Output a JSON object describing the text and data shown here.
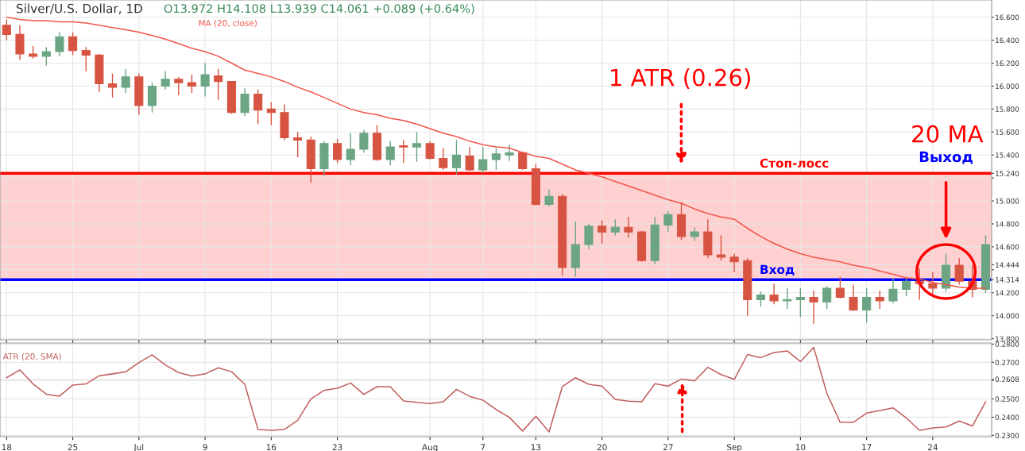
{
  "chart_data": [
    {
      "type": "candlestick",
      "title": "Silver/U.S. Dollar, 1D",
      "subtitle": "O13.972 H14.108 L13.939 C14.061 +0.089 (+0.64%)",
      "categories": [
        null,
        null,
        null,
        null,
        null,
        null,
        null,
        null,
        null,
        null,
        null,
        null,
        null,
        null,
        null,
        null,
        null,
        null,
        null,
        null,
        null,
        null,
        null,
        null,
        null,
        null,
        null,
        null,
        null,
        null,
        null,
        null,
        null,
        null,
        null,
        null,
        null,
        null,
        null,
        null,
        null,
        null,
        null,
        null,
        null,
        null,
        null,
        null,
        null,
        null,
        null,
        null,
        null,
        null,
        null,
        null,
        null,
        null,
        null,
        null,
        null,
        null,
        null,
        null,
        null,
        null,
        null,
        null,
        null,
        null,
        null,
        null,
        null,
        null,
        null
      ],
      "ohlc": [
        [
          16.53,
          16.58,
          16.4,
          16.45
        ],
        [
          16.45,
          16.53,
          16.23,
          16.28
        ],
        [
          16.28,
          16.35,
          16.24,
          16.26
        ],
        [
          16.26,
          16.34,
          16.18,
          16.3
        ],
        [
          16.3,
          16.47,
          16.26,
          16.43
        ],
        [
          16.43,
          16.47,
          16.27,
          16.31
        ],
        [
          16.31,
          16.34,
          16.13,
          16.27
        ],
        [
          16.27,
          16.28,
          15.95,
          16.02
        ],
        [
          16.02,
          16.11,
          15.9,
          15.99
        ],
        [
          15.99,
          16.15,
          15.94,
          16.08
        ],
        [
          16.08,
          16.11,
          15.75,
          15.83
        ],
        [
          15.83,
          16.03,
          15.77,
          16.0
        ],
        [
          16.0,
          16.13,
          15.97,
          16.06
        ],
        [
          16.06,
          16.08,
          15.92,
          16.03
        ],
        [
          16.03,
          16.1,
          15.94,
          16.0
        ],
        [
          16.0,
          16.2,
          15.91,
          16.1
        ],
        [
          16.09,
          16.15,
          15.88,
          16.04
        ],
        [
          16.04,
          16.04,
          15.76,
          15.77
        ],
        [
          15.77,
          15.98,
          15.74,
          15.93
        ],
        [
          15.93,
          15.97,
          15.67,
          15.79
        ],
        [
          15.8,
          15.86,
          15.66,
          15.77
        ],
        [
          15.77,
          15.84,
          15.53,
          15.55
        ],
        [
          15.55,
          15.6,
          15.38,
          15.53
        ],
        [
          15.53,
          15.56,
          15.16,
          15.28
        ],
        [
          15.28,
          15.52,
          15.22,
          15.5
        ],
        [
          15.5,
          15.54,
          15.33,
          15.36
        ],
        [
          15.36,
          15.59,
          15.31,
          15.45
        ],
        [
          15.45,
          15.62,
          15.42,
          15.59
        ],
        [
          15.59,
          15.66,
          15.35,
          15.36
        ],
        [
          15.36,
          15.52,
          15.31,
          15.47
        ],
        [
          15.48,
          15.53,
          15.33,
          15.47
        ],
        [
          15.47,
          15.6,
          15.34,
          15.5
        ],
        [
          15.5,
          15.52,
          15.36,
          15.37
        ],
        [
          15.37,
          15.46,
          15.27,
          15.29
        ],
        [
          15.29,
          15.53,
          15.23,
          15.4
        ],
        [
          15.39,
          15.47,
          15.26,
          15.27
        ],
        [
          15.27,
          15.47,
          15.24,
          15.36
        ],
        [
          15.36,
          15.46,
          15.27,
          15.41
        ],
        [
          15.4,
          15.49,
          15.35,
          15.42
        ],
        [
          15.42,
          15.43,
          15.27,
          15.28
        ],
        [
          15.28,
          15.32,
          14.96,
          14.97
        ],
        [
          14.97,
          15.1,
          14.95,
          15.04
        ],
        [
          15.04,
          15.06,
          14.35,
          14.42
        ],
        [
          14.42,
          14.82,
          14.34,
          14.62
        ],
        [
          14.62,
          14.8,
          14.58,
          14.78
        ],
        [
          14.78,
          14.83,
          14.63,
          14.73
        ],
        [
          14.73,
          14.84,
          14.7,
          14.77
        ],
        [
          14.77,
          14.86,
          14.68,
          14.73
        ],
        [
          14.73,
          14.74,
          14.47,
          14.48
        ],
        [
          14.48,
          14.86,
          14.45,
          14.79
        ],
        [
          14.79,
          14.91,
          14.73,
          14.88
        ],
        [
          14.88,
          14.99,
          14.66,
          14.69
        ],
        [
          14.69,
          14.77,
          14.65,
          14.73
        ],
        [
          14.73,
          14.84,
          14.5,
          14.53
        ],
        [
          14.53,
          14.7,
          14.48,
          14.51
        ],
        [
          14.51,
          14.54,
          14.38,
          14.47
        ],
        [
          14.48,
          14.5,
          14.0,
          14.14
        ],
        [
          14.14,
          14.21,
          14.08,
          14.18
        ],
        [
          14.18,
          14.28,
          14.1,
          14.13
        ],
        [
          14.13,
          14.24,
          14.06,
          14.14
        ],
        [
          14.14,
          14.24,
          13.99,
          14.16
        ],
        [
          14.16,
          14.22,
          13.93,
          14.12
        ],
        [
          14.12,
          14.26,
          14.06,
          14.24
        ],
        [
          14.24,
          14.34,
          14.15,
          14.16
        ],
        [
          14.16,
          14.27,
          14.04,
          14.05
        ],
        [
          14.05,
          14.24,
          13.94,
          14.16
        ],
        [
          14.16,
          14.22,
          14.06,
          14.13
        ],
        [
          14.13,
          14.33,
          14.11,
          14.23
        ],
        [
          14.23,
          14.34,
          14.17,
          14.3
        ],
        [
          14.3,
          14.41,
          14.14,
          14.28
        ],
        [
          14.28,
          14.38,
          14.18,
          14.24
        ],
        [
          14.24,
          14.54,
          14.21,
          14.44
        ],
        [
          14.44,
          14.5,
          14.27,
          14.3
        ],
        [
          14.3,
          14.44,
          14.16,
          14.23
        ],
        [
          14.23,
          14.7,
          14.2,
          14.62
        ]
      ],
      "colors": [
        "#d75442",
        "#d75442",
        "#d75442",
        "#6ba583",
        "#6ba583",
        "#d75442",
        "#d75442",
        "#d75442",
        "#d75442",
        "#6ba583",
        "#d75442",
        "#6ba583",
        "#6ba583",
        "#d75442",
        "#d75442",
        "#6ba583",
        "#d75442",
        "#d75442",
        "#6ba583",
        "#d75442",
        "#d75442",
        "#d75442",
        "#d75442",
        "#d75442",
        "#6ba583",
        "#d75442",
        "#6ba583",
        "#6ba583",
        "#d75442",
        "#6ba583",
        "#d75442",
        "#6ba583",
        "#d75442",
        "#d75442",
        "#6ba583",
        "#d75442",
        "#6ba583",
        "#6ba583",
        "#6ba583",
        "#d75442",
        "#d75442",
        "#6ba583",
        "#d75442",
        "#6ba583",
        "#6ba583",
        "#d75442",
        "#6ba583",
        "#d75442",
        "#d75442",
        "#6ba583",
        "#6ba583",
        "#d75442",
        "#6ba583",
        "#d75442",
        "#d75442",
        "#d75442",
        "#d75442",
        "#6ba583",
        "#d75442",
        "#6ba583",
        "#6ba583",
        "#d75442",
        "#6ba583",
        "#d75442",
        "#d75442",
        "#6ba583",
        "#d75442",
        "#6ba583",
        "#6ba583",
        "#d75442",
        "#d75442",
        "#6ba583",
        "#d75442",
        "#d75442",
        "#6ba583"
      ],
      "series": [
        {
          "type": "line",
          "name": "MA (20, close)",
          "color": "#f2564a",
          "values": [
            16.6,
            16.58,
            16.57,
            16.57,
            16.56,
            16.56,
            16.55,
            16.53,
            16.51,
            16.49,
            16.47,
            16.44,
            16.41,
            16.37,
            16.33,
            16.3,
            16.26,
            16.2,
            16.14,
            16.11,
            16.08,
            16.04,
            15.99,
            15.95,
            15.9,
            15.85,
            15.8,
            15.77,
            15.75,
            15.72,
            15.7,
            15.67,
            15.63,
            15.59,
            15.56,
            15.52,
            15.49,
            15.47,
            15.46,
            15.42,
            15.39,
            15.37,
            15.32,
            15.27,
            15.24,
            15.21,
            15.17,
            15.13,
            15.09,
            15.05,
            15.01,
            14.98,
            14.93,
            14.89,
            14.86,
            14.84,
            14.76,
            14.69,
            14.63,
            14.58,
            14.54,
            14.51,
            14.49,
            14.47,
            14.44,
            14.42,
            14.39,
            14.36,
            14.33,
            14.32,
            14.29,
            14.27,
            14.25,
            14.24,
            14.24
          ]
        }
      ],
      "ylim": [
        13.79,
        16.75
      ],
      "yticks": [
        {
          "value": 13.8,
          "label": "13.800"
        },
        {
          "value": 14.0,
          "label": "14.000"
        },
        {
          "value": 14.2,
          "label": "14.200"
        },
        {
          "value": 14.4,
          "label": null
        },
        {
          "value": 14.6,
          "label": "14.600"
        },
        {
          "value": 14.8,
          "label": "14.800"
        },
        {
          "value": 15.0,
          "label": "15.000"
        },
        {
          "value": 15.2,
          "label": null
        },
        {
          "value": 15.4,
          "label": "15.400"
        },
        {
          "value": 15.6,
          "label": "15.600"
        },
        {
          "value": 15.8,
          "label": "15.800"
        },
        {
          "value": 16.0,
          "label": "16.000"
        },
        {
          "value": 16.2,
          "label": "16.200"
        },
        {
          "value": 16.4,
          "label": "16.400"
        },
        {
          "value": 16.6,
          "label": "16.600"
        },
        {
          "value": 15.24,
          "label": "15.240"
        },
        {
          "value": 14.444,
          "label": "14.444"
        },
        {
          "value": 14.314,
          "label": "14.314"
        }
      ],
      "ref_lines": [
        {
          "axis": "y",
          "value": 15.24,
          "label": "Стоп-лосс",
          "color": "#ff0000"
        },
        {
          "axis": "y",
          "value": 14.314,
          "label": "Вход",
          "color": "#0000ff"
        }
      ],
      "bands": [
        {
          "axis": "y",
          "from": 14.314,
          "to": 15.24,
          "color": "#ffc4c4"
        }
      ],
      "annotations": [
        "1 ATR (0.26)",
        "20 MA",
        "Выход"
      ],
      "grid": true,
      "tick_labels": "y"
    },
    {
      "type": "line",
      "categories": [
        "18",
        null,
        null,
        null,
        null,
        "25",
        null,
        null,
        null,
        null,
        "Jul",
        null,
        null,
        null,
        null,
        "9",
        null,
        null,
        null,
        null,
        "16",
        null,
        null,
        null,
        null,
        "23",
        null,
        null,
        null,
        null,
        null,
        null,
        "Aug",
        null,
        null,
        null,
        "7",
        null,
        null,
        null,
        "13",
        null,
        null,
        null,
        null,
        "20",
        null,
        null,
        null,
        null,
        "27",
        null,
        null,
        null,
        null,
        "Sep",
        null,
        null,
        null,
        null,
        "10",
        null,
        null,
        null,
        null,
        "17",
        null,
        null,
        null,
        null,
        "24",
        null,
        null,
        null,
        null
      ],
      "series": [
        {
          "name": "ATR (20, SMA)",
          "color": "#c0605e",
          "values": [
            0.2616,
            0.2659,
            0.2582,
            0.2526,
            0.2515,
            0.2576,
            0.2582,
            0.2627,
            0.2637,
            0.2648,
            0.2699,
            0.2741,
            0.2686,
            0.2644,
            0.2626,
            0.2637,
            0.267,
            0.2649,
            0.258,
            0.2333,
            0.2328,
            0.2333,
            0.2383,
            0.25,
            0.2547,
            0.2558,
            0.2587,
            0.2525,
            0.2567,
            0.2567,
            0.2489,
            0.2481,
            0.2475,
            0.2484,
            0.2552,
            0.2514,
            0.2493,
            0.2442,
            0.2399,
            0.2324,
            0.2405,
            0.2319,
            0.2567,
            0.2616,
            0.258,
            0.257,
            0.2497,
            0.2488,
            0.2484,
            0.2583,
            0.257,
            0.2609,
            0.2598,
            0.2673,
            0.2633,
            0.2607,
            0.2743,
            0.2726,
            0.2754,
            0.2763,
            0.2704,
            0.2782,
            0.253,
            0.2372,
            0.2372,
            0.2422,
            0.2437,
            0.2451,
            0.2396,
            0.2328,
            0.2341,
            0.2346,
            0.2379,
            0.2352,
            0.2484
          ]
        }
      ],
      "ylim": [
        0.2293,
        0.2806
      ],
      "yticks": [
        {
          "value": 0.23,
          "label": "0.2300"
        },
        {
          "value": 0.24,
          "label": "0.2400"
        },
        {
          "value": 0.25,
          "label": "0.2500"
        },
        {
          "value": 0.26,
          "label": null
        },
        {
          "value": 0.27,
          "label": "0.2700"
        },
        {
          "value": 0.28,
          "label": "0.2800"
        },
        {
          "value": 0.2608,
          "label": "0.2608"
        }
      ],
      "grid": true
    }
  ]
}
